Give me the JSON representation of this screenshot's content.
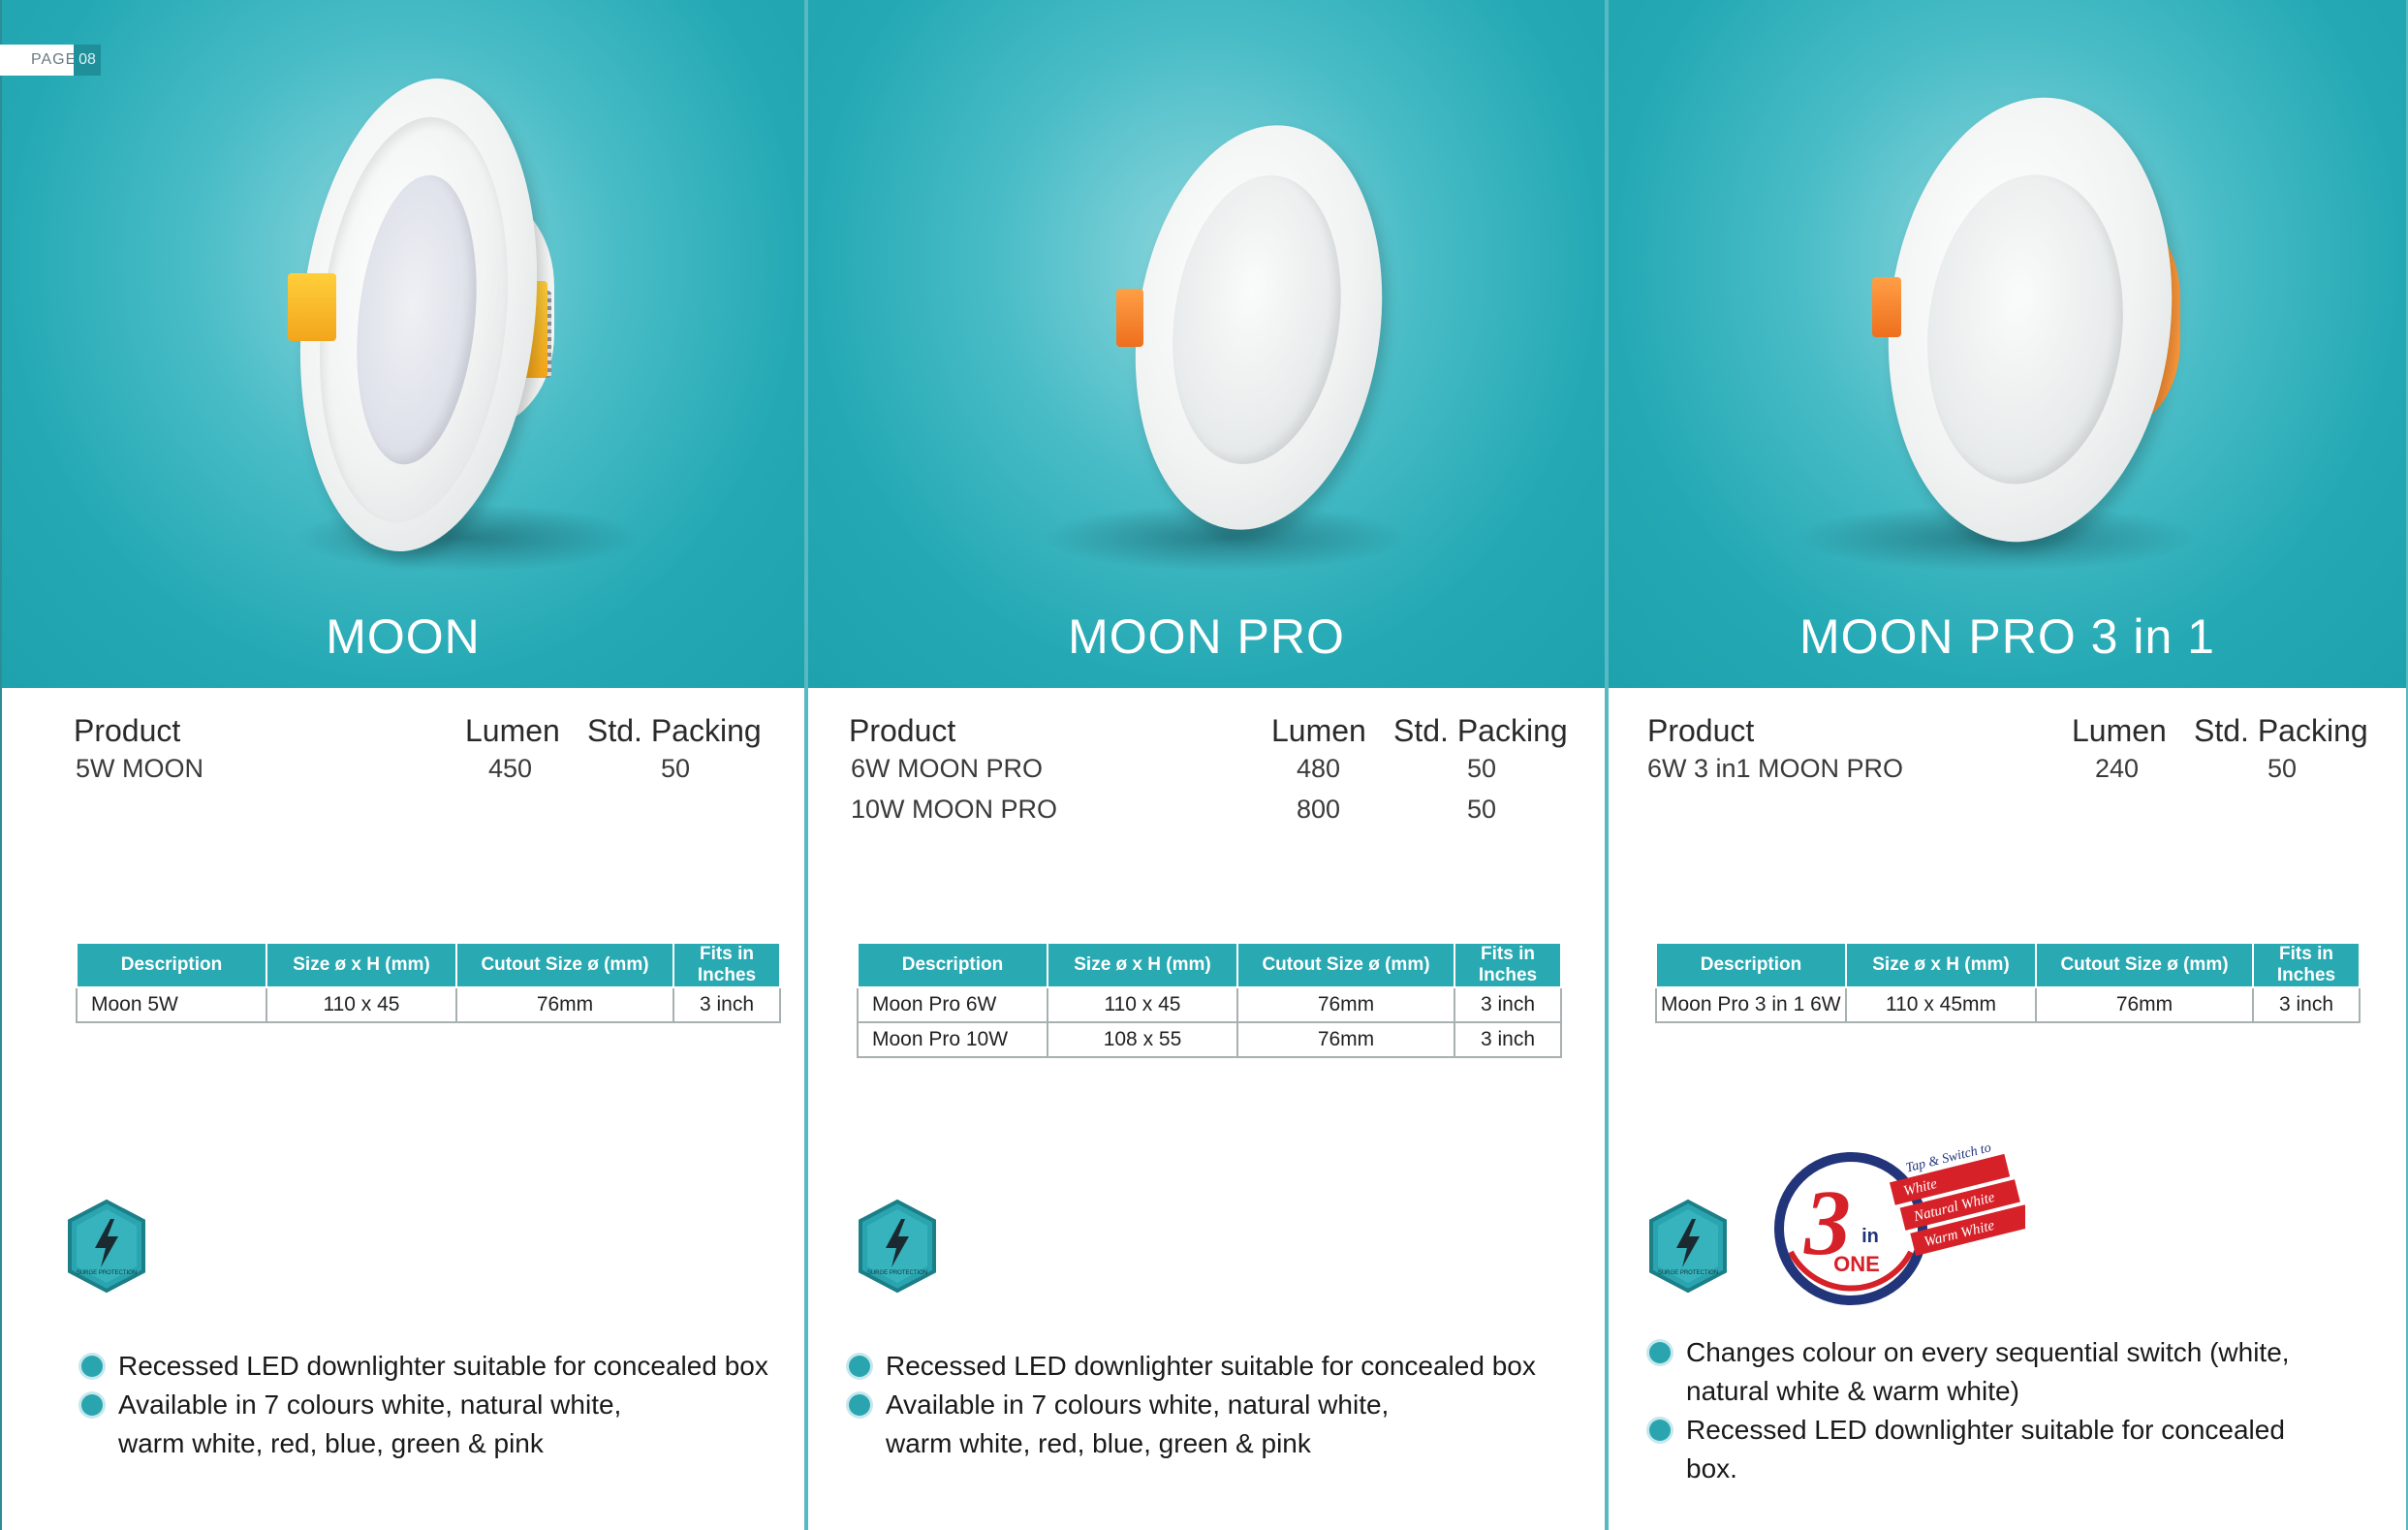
{
  "page": {
    "label": "PAGE",
    "number": "08"
  },
  "colors": {
    "teal": "#29a9b2",
    "hero": "#24a9b4",
    "red": "#d62128",
    "navy": "#23357a"
  },
  "panels": [
    {
      "title": "MOON",
      "headers": {
        "product": "Product",
        "lumen": "Lumen",
        "packing": "Std. Packing"
      },
      "products": [
        {
          "name": "5W MOON",
          "lumen": "450",
          "packing": "50"
        }
      ],
      "table": {
        "columns": [
          "Description",
          "Size ø x H (mm)",
          "Cutout Size ø (mm)",
          "Fits in Inches"
        ],
        "rows": [
          [
            "Moon 5W",
            "110 x 45",
            "76mm",
            "3 inch"
          ]
        ]
      },
      "badge": {
        "icon": "surge-protection-icon",
        "text": "SURGE PROTECTION"
      },
      "bullets": [
        "Recessed LED downlighter suitable for concealed box",
        "Available in 7 colours white, natural white,",
        "warm white, red, blue, green & pink"
      ]
    },
    {
      "title": "MOON PRO",
      "headers": {
        "product": "Product",
        "lumen": "Lumen",
        "packing": "Std. Packing"
      },
      "products": [
        {
          "name": "6W MOON PRO",
          "lumen": "480",
          "packing": "50"
        },
        {
          "name": "10W MOON PRO",
          "lumen": "800",
          "packing": "50"
        }
      ],
      "table": {
        "columns": [
          "Description",
          "Size ø x H (mm)",
          "Cutout Size ø (mm)",
          "Fits in Inches"
        ],
        "rows": [
          [
            "Moon Pro 6W",
            "110 x 45",
            "76mm",
            "3 inch"
          ],
          [
            "Moon Pro 10W",
            "108 x 55",
            "76mm",
            "3 inch"
          ]
        ]
      },
      "badge": {
        "icon": "surge-protection-icon",
        "text": "SURGE PROTECTION"
      },
      "bullets": [
        "Recessed LED downlighter suitable for concealed box",
        "Available in 7 colours white, natural white,",
        "warm white, red, blue, green & pink"
      ]
    },
    {
      "title": "MOON PRO 3 in 1",
      "headers": {
        "product": "Product",
        "lumen": "Lumen",
        "packing": "Std. Packing"
      },
      "products": [
        {
          "name": "6W 3 in1 MOON PRO",
          "lumen": "240",
          "packing": "50"
        }
      ],
      "table": {
        "columns": [
          "Description",
          "Size ø x H (mm)",
          "Cutout Size ø (mm)",
          "Fits in Inches"
        ],
        "rows": [
          [
            "Moon Pro 3 in 1 6W",
            "110 x 45mm",
            "76mm",
            "3 inch"
          ]
        ]
      },
      "badge": {
        "icon": "surge-protection-icon",
        "text": "SURGE PROTECTION"
      },
      "three_in_one": {
        "big": "3",
        "small": "in",
        "word": "ONE",
        "ribbon": [
          "Tap & Switch to",
          "White",
          "Natural White",
          "Warm White"
        ]
      },
      "bullets": [
        "Changes colour on every sequential switch (white,",
        "natural white & warm white)",
        "Recessed LED downlighter suitable for concealed",
        "box."
      ]
    }
  ]
}
